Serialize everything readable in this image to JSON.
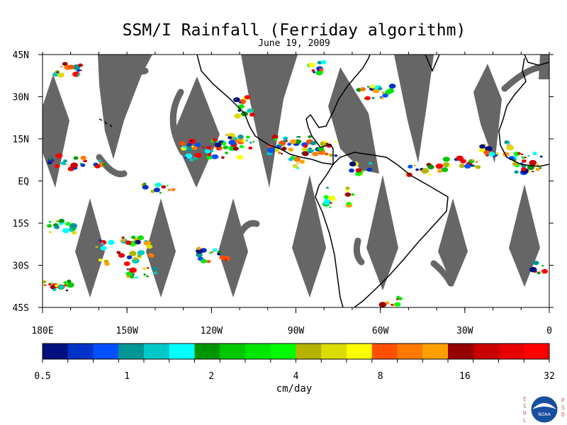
{
  "title": "SSM/I Rainfall (Ferriday algorithm)",
  "subtitle": "June 19, 2009",
  "map": {
    "lon_range": [
      180,
      360
    ],
    "lat_range": [
      -45,
      45
    ],
    "x_ticks": [
      "180E",
      "150W",
      "120W",
      "90W",
      "60W",
      "30W",
      "0"
    ],
    "y_ticks": [
      "45N",
      "30N",
      "15N",
      "EQ",
      "15S",
      "30S",
      "45S"
    ],
    "missing_data_color": "#666666",
    "coastline_color": "#000000"
  },
  "colorbar": {
    "title": "cm/day",
    "tick_labels": [
      "0.5",
      "1",
      "2",
      "4",
      "8",
      "16",
      "32"
    ],
    "colors": [
      "#00107f",
      "#0032c8",
      "#0050ff",
      "#009696",
      "#00c8c8",
      "#00ffff",
      "#009600",
      "#00c800",
      "#00e600",
      "#00ff00",
      "#b4b400",
      "#dcdc00",
      "#ffff00",
      "#ff5000",
      "#ff7800",
      "#ffa000",
      "#960000",
      "#c80000",
      "#e60000",
      "#ff0000"
    ]
  },
  "logo": {
    "left_letters": "ESRL",
    "right_letters": "PSD",
    "center_text": "NOAA"
  }
}
